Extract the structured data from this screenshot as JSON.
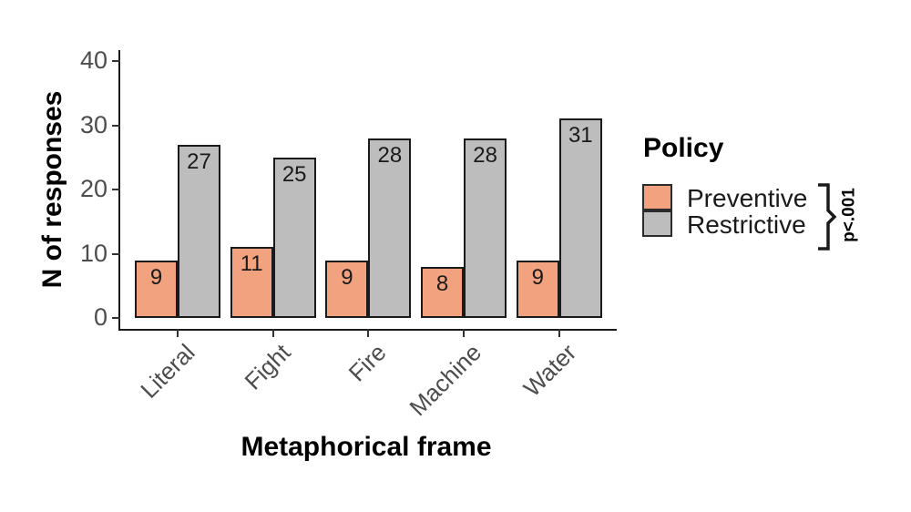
{
  "chart_data": {
    "type": "bar",
    "title": "",
    "categories": [
      "Literal",
      "Fight",
      "Fire",
      "Machine",
      "Water"
    ],
    "series": [
      {
        "name": "Preventive",
        "color": "#F2A27F",
        "values": [
          9,
          11,
          9,
          8,
          9
        ]
      },
      {
        "name": "Restrictive",
        "color": "#BDBDBD",
        "values": [
          27,
          25,
          28,
          28,
          31
        ]
      }
    ],
    "xlabel": "Metaphorical frame",
    "ylabel": "N of responses",
    "ylim": [
      0,
      40
    ],
    "yticks": [
      0,
      10,
      20,
      30,
      40
    ],
    "grid": false,
    "bar_value_labels": true,
    "legend_title": "Policy",
    "legend_position": "right",
    "significance_annotation": "p<.001"
  },
  "styles": {
    "bar_border_color": "#1a1a1a",
    "axis_line_color": "#1a1a1a",
    "tick_label_color": "#4d4d4d",
    "value_label_color": "#1a1a1a",
    "background": "#ffffff"
  }
}
